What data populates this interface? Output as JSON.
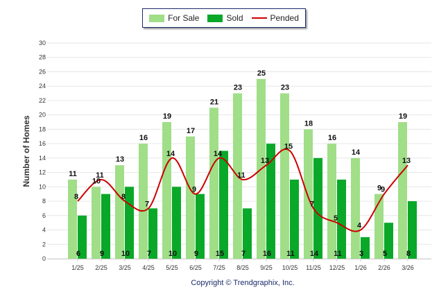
{
  "chart_data": {
    "type": "bar",
    "categories": [
      "1/25",
      "2/25",
      "3/25",
      "4/25",
      "5/25",
      "6/25",
      "7/25",
      "8/25",
      "9/25",
      "10/25",
      "11/25",
      "12/25",
      "1/26",
      "2/26",
      "3/26"
    ],
    "series": [
      {
        "name": "For Sale",
        "kind": "bar",
        "color": "#a0de88",
        "values": [
          11,
          10,
          13,
          16,
          19,
          17,
          21,
          23,
          25,
          23,
          18,
          16,
          14,
          9,
          19
        ]
      },
      {
        "name": "Sold",
        "kind": "bar",
        "color": "#0aa828",
        "values": [
          6,
          9,
          10,
          7,
          10,
          9,
          15,
          7,
          16,
          11,
          14,
          11,
          3,
          5,
          8
        ]
      },
      {
        "name": "Pended",
        "kind": "line",
        "color": "#cc0000",
        "values": [
          8,
          11,
          8,
          7,
          14,
          9,
          14,
          11,
          13,
          15,
          7,
          5,
          4,
          9,
          13
        ]
      }
    ],
    "ylabel": "Number of Homes",
    "xlabel": "",
    "ylim": [
      0,
      30
    ],
    "yticks": [
      0,
      2,
      4,
      6,
      8,
      10,
      12,
      14,
      16,
      18,
      20,
      22,
      24,
      26,
      28,
      30
    ],
    "grid": true,
    "legend_position": "top-center"
  },
  "footer": "Copyright © Trendgraphix, Inc."
}
